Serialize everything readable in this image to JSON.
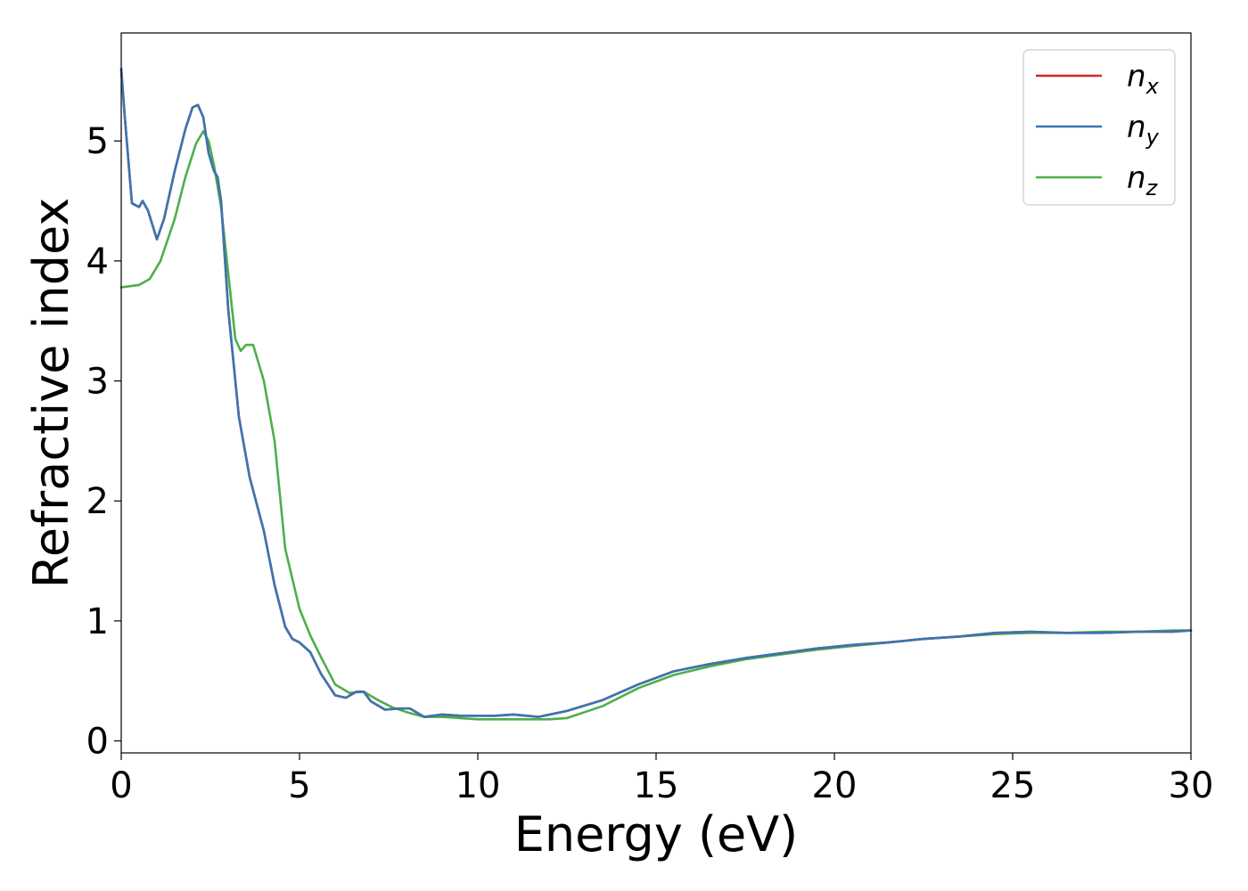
{
  "chart_data": {
    "type": "line",
    "title": "",
    "xlabel": "Energy (eV)",
    "ylabel": "Refractive index",
    "xlim": [
      0,
      30
    ],
    "ylim": [
      -0.1,
      5.9
    ],
    "xticks": [
      "0",
      "5",
      "10",
      "15",
      "20",
      "25",
      "30"
    ],
    "yticks": [
      "0",
      "1",
      "2",
      "3",
      "4",
      "5"
    ],
    "grid": false,
    "legend_position": "top-right",
    "series": [
      {
        "name": "n",
        "subscript": "x",
        "color": "#d62728",
        "x": [
          0,
          0.1,
          0.3,
          0.5,
          0.6,
          0.75,
          1.0,
          1.2,
          1.5,
          1.8,
          2.0,
          2.15,
          2.3,
          2.45,
          2.6,
          2.7,
          2.8,
          3.0,
          3.3,
          3.6,
          4.0,
          4.3,
          4.6,
          4.8,
          5.0,
          5.3,
          5.6,
          6.0,
          6.3,
          6.6,
          6.8,
          7.0,
          7.4,
          7.8,
          8.1,
          8.5,
          9.0,
          9.5,
          10.0,
          10.5,
          11.0,
          11.7,
          12.5,
          13.5,
          14.5,
          15.5,
          16.5,
          17.5,
          18.5,
          19.5,
          20.5,
          21.5,
          22.5,
          23.5,
          24.5,
          25.5,
          26.5,
          27.5,
          28.5,
          29.5,
          30
        ],
        "values": [
          5.6,
          5.2,
          4.48,
          4.45,
          4.5,
          4.42,
          4.18,
          4.35,
          4.75,
          5.1,
          5.28,
          5.3,
          5.2,
          4.9,
          4.75,
          4.7,
          4.5,
          3.6,
          2.7,
          2.2,
          1.75,
          1.3,
          0.95,
          0.85,
          0.82,
          0.74,
          0.56,
          0.38,
          0.36,
          0.41,
          0.41,
          0.33,
          0.26,
          0.27,
          0.27,
          0.2,
          0.22,
          0.21,
          0.21,
          0.21,
          0.22,
          0.2,
          0.25,
          0.34,
          0.47,
          0.58,
          0.64,
          0.69,
          0.73,
          0.77,
          0.8,
          0.82,
          0.85,
          0.87,
          0.9,
          0.91,
          0.9,
          0.9,
          0.91,
          0.91,
          0.92
        ]
      },
      {
        "name": "n",
        "subscript": "y",
        "color": "#3a75b0",
        "x": [
          0,
          0.1,
          0.3,
          0.5,
          0.6,
          0.75,
          1.0,
          1.2,
          1.5,
          1.8,
          2.0,
          2.15,
          2.3,
          2.45,
          2.6,
          2.7,
          2.8,
          3.0,
          3.3,
          3.6,
          4.0,
          4.3,
          4.6,
          4.8,
          5.0,
          5.3,
          5.6,
          6.0,
          6.3,
          6.6,
          6.8,
          7.0,
          7.4,
          7.8,
          8.1,
          8.5,
          9.0,
          9.5,
          10.0,
          10.5,
          11.0,
          11.7,
          12.5,
          13.5,
          14.5,
          15.5,
          16.5,
          17.5,
          18.5,
          19.5,
          20.5,
          21.5,
          22.5,
          23.5,
          24.5,
          25.5,
          26.5,
          27.5,
          28.5,
          29.5,
          30
        ],
        "values": [
          5.6,
          5.2,
          4.48,
          4.45,
          4.5,
          4.42,
          4.18,
          4.35,
          4.75,
          5.1,
          5.28,
          5.3,
          5.2,
          4.9,
          4.75,
          4.7,
          4.5,
          3.6,
          2.7,
          2.2,
          1.75,
          1.3,
          0.95,
          0.85,
          0.82,
          0.74,
          0.56,
          0.38,
          0.36,
          0.41,
          0.41,
          0.33,
          0.26,
          0.27,
          0.27,
          0.2,
          0.22,
          0.21,
          0.21,
          0.21,
          0.22,
          0.2,
          0.25,
          0.34,
          0.47,
          0.58,
          0.64,
          0.69,
          0.73,
          0.77,
          0.8,
          0.82,
          0.85,
          0.87,
          0.9,
          0.91,
          0.9,
          0.9,
          0.91,
          0.91,
          0.92
        ]
      },
      {
        "name": "n",
        "subscript": "z",
        "color": "#4daf4a",
        "x": [
          0,
          0.5,
          0.8,
          1.1,
          1.5,
          1.8,
          2.1,
          2.3,
          2.45,
          2.6,
          2.8,
          3.0,
          3.2,
          3.35,
          3.5,
          3.7,
          4.0,
          4.3,
          4.6,
          5.0,
          5.3,
          5.6,
          6.0,
          6.4,
          6.8,
          7.2,
          7.6,
          8.0,
          8.5,
          9.0,
          9.5,
          10.0,
          10.5,
          11.0,
          11.5,
          12.0,
          12.5,
          13.0,
          13.5,
          14.5,
          15.5,
          16.5,
          17.5,
          18.5,
          19.5,
          20.5,
          21.5,
          22.5,
          23.5,
          24.5,
          25.5,
          26.5,
          27.5,
          28.5,
          29.5,
          30
        ],
        "values": [
          3.78,
          3.8,
          3.85,
          4.0,
          4.35,
          4.7,
          4.98,
          5.08,
          5.0,
          4.8,
          4.45,
          3.9,
          3.35,
          3.25,
          3.3,
          3.3,
          3.0,
          2.5,
          1.6,
          1.1,
          0.88,
          0.7,
          0.47,
          0.4,
          0.41,
          0.34,
          0.28,
          0.24,
          0.2,
          0.2,
          0.19,
          0.18,
          0.18,
          0.18,
          0.18,
          0.18,
          0.19,
          0.24,
          0.29,
          0.44,
          0.55,
          0.62,
          0.68,
          0.72,
          0.76,
          0.79,
          0.82,
          0.85,
          0.87,
          0.89,
          0.9,
          0.9,
          0.91,
          0.91,
          0.92,
          0.92
        ]
      }
    ]
  }
}
